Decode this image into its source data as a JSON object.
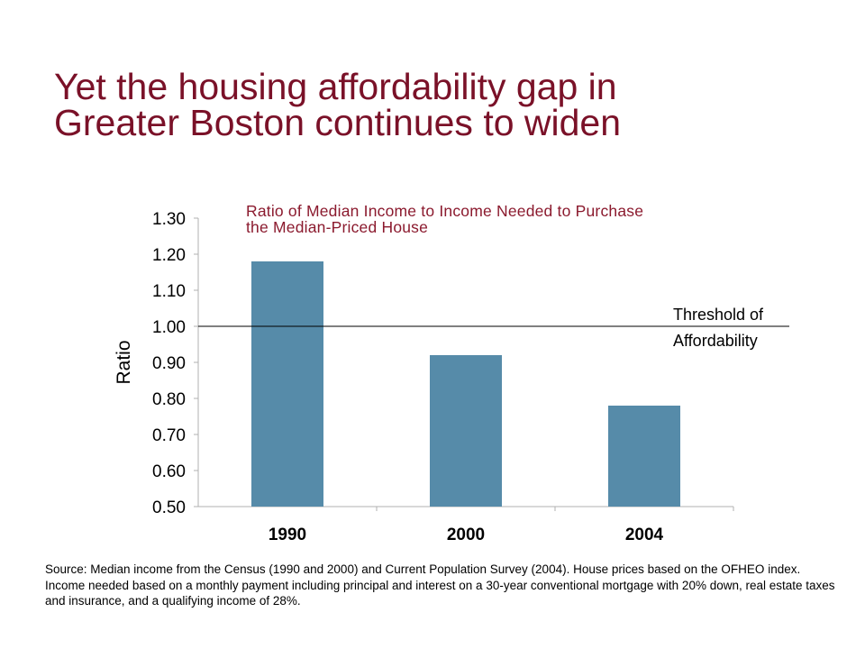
{
  "slide": {
    "title_lines": [
      "Yet the housing affordability gap in",
      "Greater Boston continues to widen"
    ],
    "source_note": "Source: Median income from the Census (1990 and 2000) and Current Population Survey (2004).  House prices based on the OFHEO index.  Income needed based on a monthly payment including principal and interest on a 30-year conventional mortgage with 20% down, real estate taxes and insurance, and a qualifying income of 28%."
  },
  "chart_data": {
    "type": "bar",
    "title_lines": [
      "Ratio of Median Income to Income Needed to Purchase",
      "the Median-Priced House"
    ],
    "categories": [
      "1990",
      "2000",
      "2004"
    ],
    "values": [
      1.18,
      0.92,
      0.78
    ],
    "ylabel": "Ratio",
    "xlabel": "",
    "ylim": [
      0.5,
      1.3
    ],
    "yticks": [
      "1.30",
      "1.20",
      "1.10",
      "1.00",
      "0.90",
      "0.80",
      "0.70",
      "0.60",
      "0.50"
    ],
    "reference_line": {
      "value": 1.0,
      "label_lines": [
        "Threshold of",
        "Affordability"
      ]
    },
    "grid": false,
    "legend": "none",
    "colors": {
      "bar": "#568ba9",
      "title": "#7a1128",
      "subtitle": "#8b1a2e"
    }
  }
}
